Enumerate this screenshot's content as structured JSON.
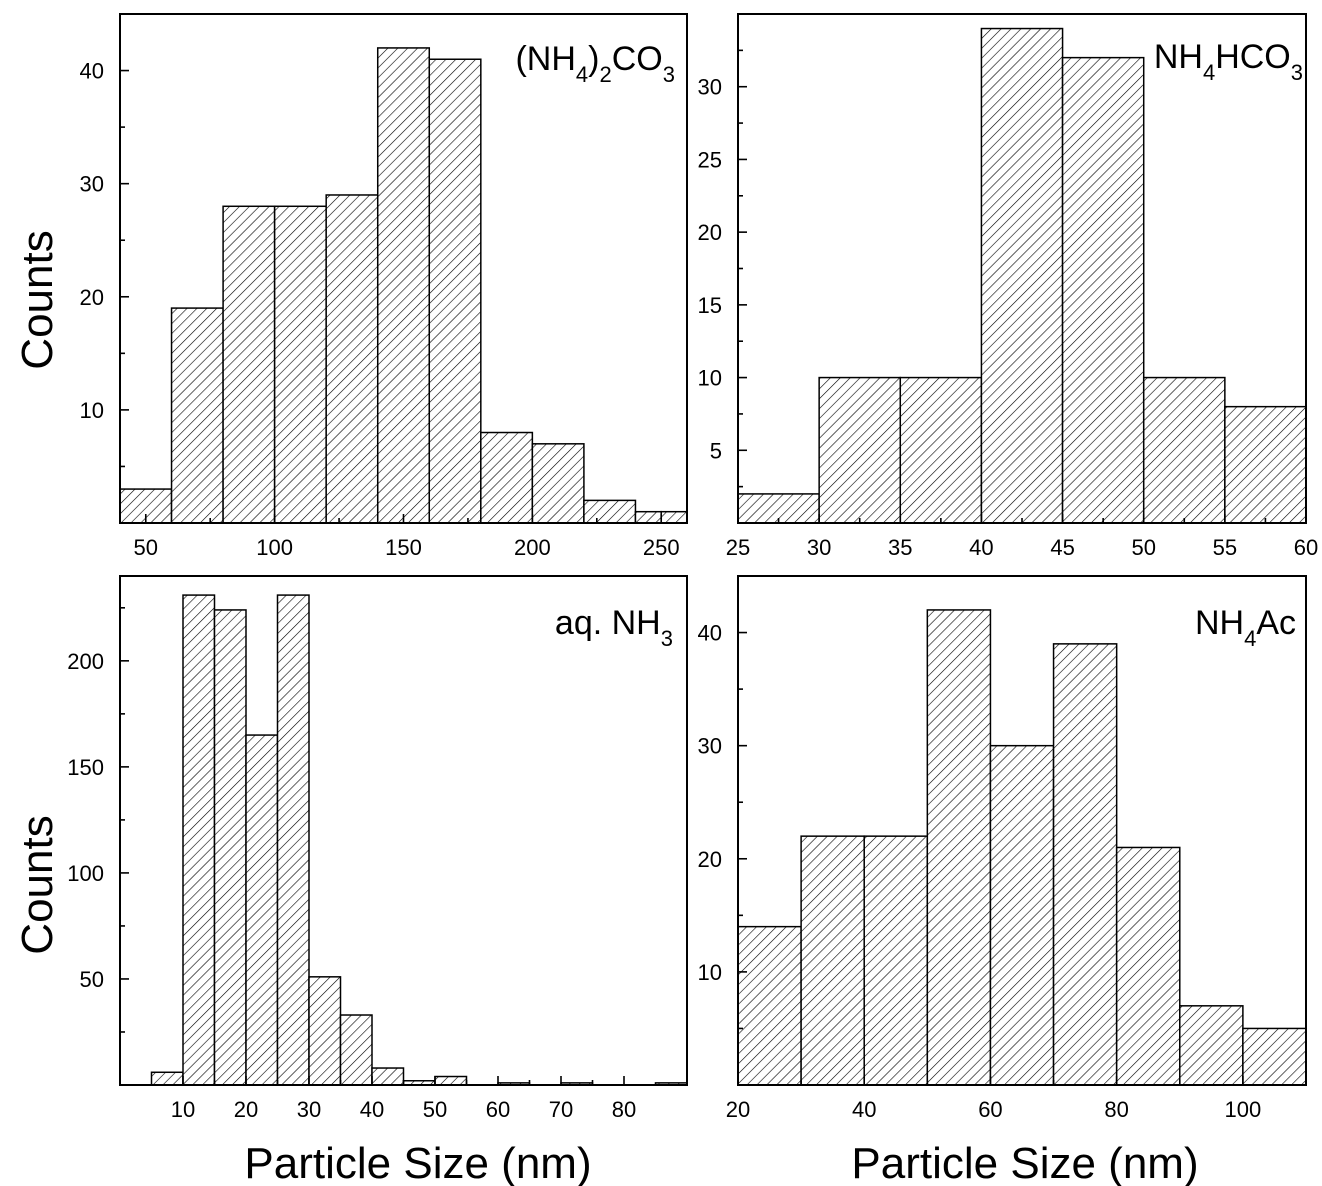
{
  "figure": {
    "ylabel_top": "Counts",
    "ylabel_bottom": "Counts",
    "xlabel_left": "Particle Size (nm)",
    "xlabel_right": "Particle Size (nm)"
  },
  "chart_data": [
    {
      "type": "bar",
      "label": {
        "main1": "(NH",
        "sub1": "4",
        "main2": ")",
        "sub2": "2",
        "main3": "CO",
        "sub3": "3"
      },
      "xlim": [
        40,
        260
      ],
      "ylim": [
        0,
        45
      ],
      "xticks": [
        50,
        100,
        150,
        200,
        250
      ],
      "yticks": [
        10,
        20,
        30,
        40
      ],
      "bins": [
        {
          "x0": 40,
          "x1": 60,
          "count": 3
        },
        {
          "x0": 60,
          "x1": 80,
          "count": 19
        },
        {
          "x0": 80,
          "x1": 100,
          "count": 28
        },
        {
          "x0": 100,
          "x1": 120,
          "count": 28
        },
        {
          "x0": 120,
          "x1": 140,
          "count": 29
        },
        {
          "x0": 140,
          "x1": 160,
          "count": 42
        },
        {
          "x0": 160,
          "x1": 180,
          "count": 41
        },
        {
          "x0": 180,
          "x1": 200,
          "count": 8
        },
        {
          "x0": 200,
          "x1": 220,
          "count": 7
        },
        {
          "x0": 220,
          "x1": 240,
          "count": 2
        },
        {
          "x0": 240,
          "x1": 250,
          "count": 1
        },
        {
          "x0": 250,
          "x1": 260,
          "count": 1
        }
      ]
    },
    {
      "type": "bar",
      "label": {
        "main1": "NH",
        "sub1": "4",
        "main2": "HCO",
        "sub2": "3"
      },
      "xlim": [
        25,
        60
      ],
      "ylim": [
        0,
        35
      ],
      "xticks": [
        25,
        30,
        35,
        40,
        45,
        50,
        55,
        60
      ],
      "yticks": [
        5,
        10,
        15,
        20,
        25,
        30
      ],
      "bins": [
        {
          "x0": 25,
          "x1": 30,
          "count": 2
        },
        {
          "x0": 30,
          "x1": 35,
          "count": 10
        },
        {
          "x0": 35,
          "x1": 40,
          "count": 10
        },
        {
          "x0": 40,
          "x1": 45,
          "count": 34
        },
        {
          "x0": 45,
          "x1": 50,
          "count": 32
        },
        {
          "x0": 50,
          "x1": 55,
          "count": 10
        },
        {
          "x0": 55,
          "x1": 60,
          "count": 8
        }
      ]
    },
    {
      "type": "bar",
      "label": {
        "main1": "aq. NH",
        "sub1": "3"
      },
      "xlim": [
        0,
        90
      ],
      "ylim": [
        0,
        240
      ],
      "xticks": [
        10,
        20,
        30,
        40,
        50,
        60,
        70,
        80
      ],
      "yticks": [
        50,
        100,
        150,
        200
      ],
      "bins": [
        {
          "x0": 5,
          "x1": 10,
          "count": 6
        },
        {
          "x0": 10,
          "x1": 15,
          "count": 231
        },
        {
          "x0": 15,
          "x1": 20,
          "count": 224
        },
        {
          "x0": 20,
          "x1": 25,
          "count": 165
        },
        {
          "x0": 25,
          "x1": 30,
          "count": 231
        },
        {
          "x0": 30,
          "x1": 35,
          "count": 51
        },
        {
          "x0": 35,
          "x1": 40,
          "count": 33
        },
        {
          "x0": 40,
          "x1": 45,
          "count": 8
        },
        {
          "x0": 45,
          "x1": 50,
          "count": 2
        },
        {
          "x0": 50,
          "x1": 55,
          "count": 4
        },
        {
          "x0": 60,
          "x1": 65,
          "count": 1
        },
        {
          "x0": 70,
          "x1": 75,
          "count": 1
        },
        {
          "x0": 85,
          "x1": 90,
          "count": 1
        }
      ]
    },
    {
      "type": "bar",
      "label": {
        "main1": "NH",
        "sub1": "4",
        "main2": "Ac"
      },
      "xlim": [
        20,
        110
      ],
      "ylim": [
        0,
        45
      ],
      "xticks": [
        20,
        40,
        60,
        80,
        100
      ],
      "yticks": [
        10,
        20,
        30,
        40
      ],
      "bins": [
        {
          "x0": 20,
          "x1": 30,
          "count": 14
        },
        {
          "x0": 30,
          "x1": 40,
          "count": 22
        },
        {
          "x0": 40,
          "x1": 50,
          "count": 22
        },
        {
          "x0": 50,
          "x1": 60,
          "count": 42
        },
        {
          "x0": 60,
          "x1": 70,
          "count": 30
        },
        {
          "x0": 70,
          "x1": 80,
          "count": 39
        },
        {
          "x0": 80,
          "x1": 90,
          "count": 21
        },
        {
          "x0": 90,
          "x1": 100,
          "count": 7
        },
        {
          "x0": 100,
          "x1": 110,
          "count": 5
        }
      ]
    }
  ]
}
